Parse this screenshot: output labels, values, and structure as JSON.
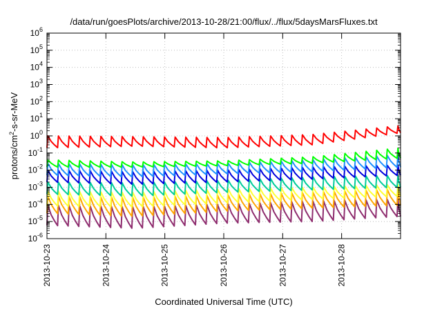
{
  "chart_data": {
    "type": "line",
    "title": "/data/run/goesPlots/archive/2013-10-28/21:00/flux/../flux/5daysMarsFluxes.txt",
    "xlabel": "Coordinated Universal Time (UTC)",
    "ylabel": {
      "pre": "protons/cm",
      "sup": "2",
      "post": "-s-sr-MeV"
    },
    "xlim": [
      "2013-10-23",
      "2013-10-29"
    ],
    "xticks": [
      "2013-10-23",
      "2013-10-24",
      "2013-10-25",
      "2013-10-26",
      "2013-10-27",
      "2013-10-28"
    ],
    "yscale": "log",
    "ylim": [
      1e-06,
      1000000.0
    ],
    "ytick_exponents": [
      -6,
      -5,
      -4,
      -3,
      -2,
      -1,
      0,
      1,
      2,
      3,
      4,
      5,
      6
    ],
    "ytick_base": "10",
    "grid": true,
    "legend": "none",
    "cycle_days": 0.18,
    "series": [
      {
        "color": "#8e2c6e",
        "min": [
          6e-06,
          4e-06,
          8e-06,
          1e-05,
          2e-05
        ],
        "max": [
          9e-05,
          7e-05,
          0.0001,
          0.00015,
          0.0002
        ]
      },
      {
        "color": "#ffa500",
        "min": [
          3e-05,
          2e-05,
          4e-05,
          6e-05,
          9e-05
        ],
        "max": [
          0.0003,
          0.00025,
          0.00035,
          0.0005,
          0.0008
        ]
      },
      {
        "color": "#ffff33",
        "min": [
          8e-05,
          7e-05,
          0.00012,
          0.0002,
          0.0003
        ],
        "max": [
          0.0006,
          0.0005,
          0.0008,
          0.001,
          0.0015
        ]
      },
      {
        "color": "#00cc99",
        "min": [
          0.0004,
          0.0003,
          0.0005,
          0.0007,
          0.001
        ],
        "max": [
          0.002,
          0.0018,
          0.0025,
          0.004,
          0.005
        ]
      },
      {
        "color": "#0000dd",
        "min": [
          0.002,
          0.0015,
          0.002,
          0.003,
          0.005
        ],
        "max": [
          0.01,
          0.008,
          0.01,
          0.015,
          0.02
        ]
      },
      {
        "color": "#1e90ff",
        "min": [
          0.005,
          0.004,
          0.006,
          0.008,
          0.015
        ],
        "max": [
          0.025,
          0.02,
          0.025,
          0.04,
          0.08
        ]
      },
      {
        "color": "#00ff00",
        "min": [
          0.015,
          0.015,
          0.018,
          0.025,
          0.05
        ],
        "max": [
          0.04,
          0.03,
          0.035,
          0.06,
          0.2
        ]
      },
      {
        "color": "#ff0000",
        "min": [
          0.2,
          0.25,
          0.2,
          0.3,
          1.5
        ],
        "max": [
          1.0,
          0.9,
          0.8,
          1.2,
          4.0
        ]
      }
    ]
  }
}
